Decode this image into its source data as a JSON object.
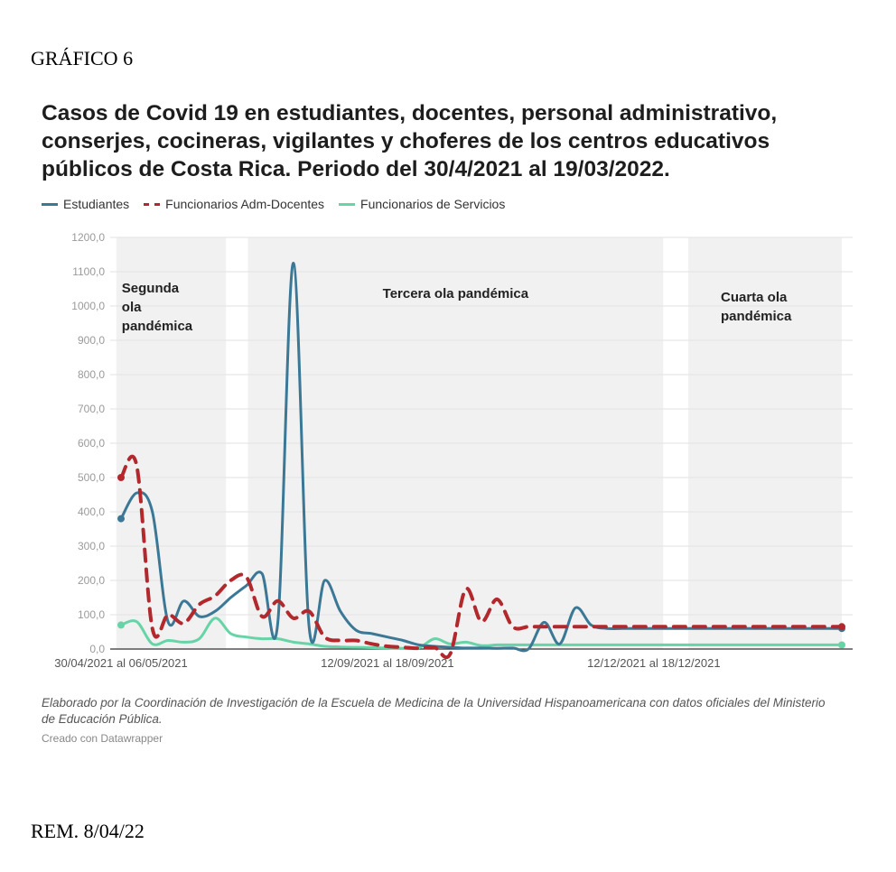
{
  "header_label": "GRÁFICO 6",
  "footer_label": "REM. 8/04/22",
  "note": "Elaborado por la Coordinación de Investigación de la Escuela de Medicina de la Universidad Hispanoamericana con datos oficiales del Ministerio de Educación Pública.",
  "credit": "Creado con Datawrapper",
  "chart_data": {
    "type": "line",
    "title": "Casos de Covid 19 en estudiantes, docentes, personal administrativo, conserjes, cocineras, vigilantes y choferes de los centros educativos públicos de Costa Rica. Periodo del 30/4/2021 al 19/03/2022.",
    "xlabel": "",
    "ylabel": "",
    "ylim": [
      0,
      1200
    ],
    "yticks": [
      "0,0",
      "100,0",
      "200,0",
      "300,0",
      "400,0",
      "500,0",
      "600,0",
      "700,0",
      "800,0",
      "900,0",
      "1000,0",
      "1100,0",
      "1200,0"
    ],
    "x_range": [
      0,
      46
    ],
    "xticks": [
      {
        "x": 0,
        "label": "30/04/2021 al 06/05/2021"
      },
      {
        "x": 17,
        "label": "12/09/2021 al 18/09/2021"
      },
      {
        "x": 34,
        "label": "12/12/2021 al 18/12/2021"
      }
    ],
    "grid": true,
    "legend_position": "top-left",
    "bands": [
      {
        "x0": -0.3,
        "x1": 6.7,
        "label": "Segunda ola pandémica"
      },
      {
        "x0": 8.1,
        "x1": 34.6,
        "label": "Tercera ola pandémica"
      },
      {
        "x0": 36.2,
        "x1": 46.0,
        "label": "Cuarta ola pandémica"
      }
    ],
    "x": [
      0,
      1,
      2,
      3,
      4,
      5,
      6,
      7,
      8,
      9,
      10,
      11,
      12,
      13,
      14,
      15,
      16,
      17,
      18,
      19,
      20,
      21,
      22,
      23,
      24,
      25,
      26,
      27,
      28,
      29,
      30,
      31,
      32,
      33,
      34,
      35,
      36,
      37,
      38,
      39,
      40,
      41,
      42,
      43,
      44,
      45,
      46
    ],
    "series": [
      {
        "name": "Estudiantes",
        "color": "#3a7896",
        "dash": false,
        "values": [
          380,
          455,
          400,
          80,
          140,
          95,
          110,
          150,
          185,
          220,
          75,
          1125,
          65,
          200,
          110,
          55,
          45,
          35,
          25,
          12,
          8,
          5,
          3,
          3,
          2,
          3,
          0,
          78,
          15,
          120,
          70,
          60,
          60,
          60,
          60,
          60,
          60,
          60,
          60,
          60,
          60,
          60,
          60,
          60,
          60,
          60,
          60
        ]
      },
      {
        "name": "Funcionarios Adm-Docentes",
        "color": "#b3282c",
        "dash": true,
        "values": [
          500,
          535,
          60,
          100,
          75,
          130,
          155,
          200,
          210,
          95,
          140,
          90,
          110,
          35,
          25,
          25,
          15,
          8,
          5,
          2,
          5,
          -15,
          175,
          80,
          145,
          65,
          65,
          65,
          65,
          65,
          65,
          65,
          65,
          65,
          65,
          65,
          65,
          65,
          65,
          65,
          65,
          65,
          65,
          65,
          65,
          65,
          65
        ]
      },
      {
        "name": "Funcionarios de Servicios",
        "color": "#66d4a6",
        "dash": false,
        "values": [
          70,
          80,
          15,
          25,
          20,
          30,
          90,
          45,
          35,
          30,
          30,
          20,
          15,
          8,
          6,
          5,
          4,
          3,
          2,
          3,
          30,
          15,
          20,
          10,
          12,
          12,
          12,
          12,
          12,
          12,
          12,
          12,
          12,
          12,
          12,
          12,
          12,
          12,
          12,
          12,
          12,
          12,
          12,
          12,
          12,
          12,
          12
        ]
      }
    ]
  }
}
